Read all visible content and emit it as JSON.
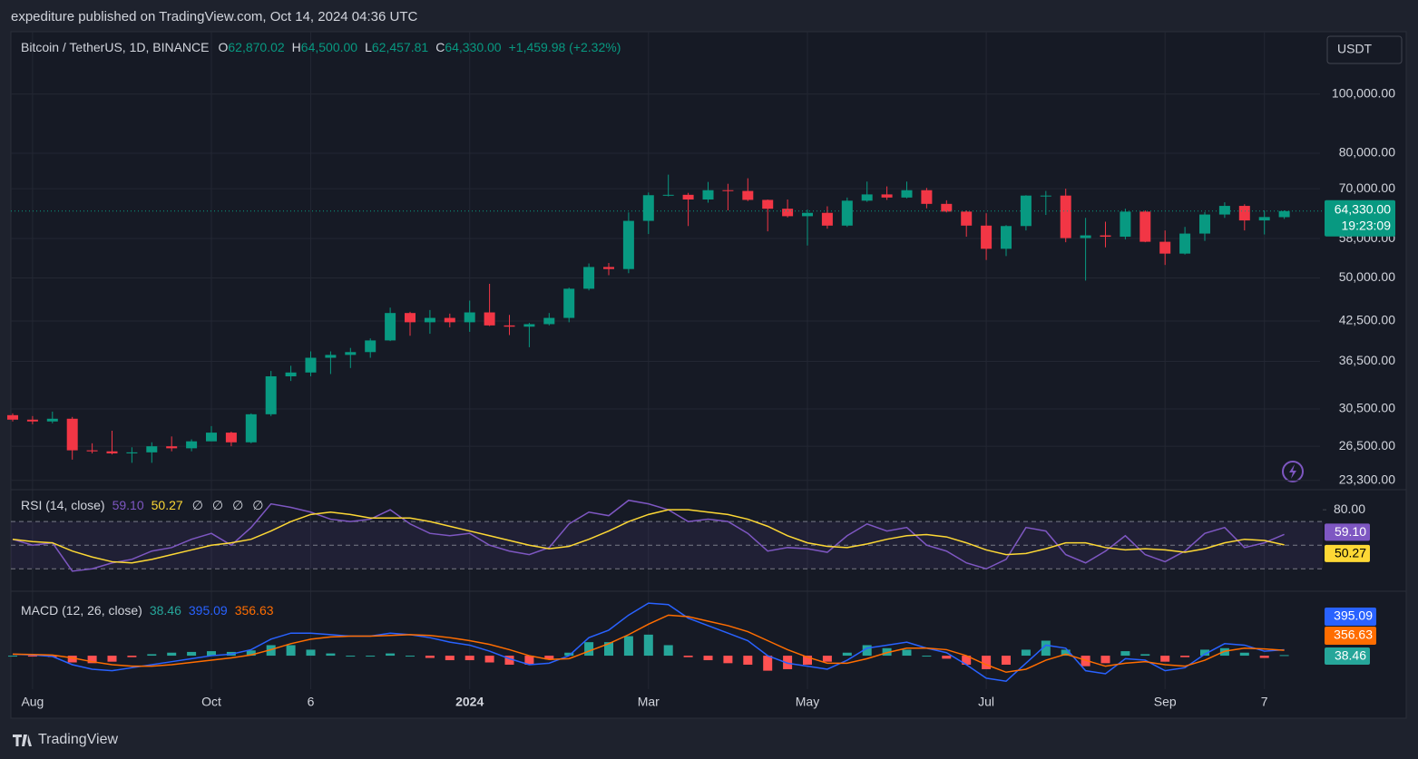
{
  "header": {
    "published": "expediture published on TradingView.com, Oct 14, 2024 04:36 UTC"
  },
  "footer": {
    "brand": "TradingView"
  },
  "chart_data": [
    {
      "type": "candlestick",
      "title": "Bitcoin / TetherUS, 1D, BINANCE",
      "ohlc_legend": [
        {
          "key": "O",
          "value": "62,870.02"
        },
        {
          "key": "H",
          "value": "64,500.00"
        },
        {
          "key": "L",
          "value": "62,457.81"
        },
        {
          "key": "C",
          "value": "64,330.00"
        }
      ],
      "change": "+1,459.98 (+2.32%)",
      "currency": "USDT",
      "categories": [
        null,
        "Aug",
        null,
        null,
        null,
        null,
        null,
        null,
        null,
        null,
        "Oct",
        null,
        null,
        null,
        null,
        "6",
        null,
        null,
        null,
        null,
        null,
        null,
        null,
        "2024",
        null,
        null,
        null,
        null,
        null,
        null,
        null,
        null,
        "Mar",
        null,
        null,
        null,
        null,
        null,
        null,
        null,
        "May",
        null,
        null,
        null,
        null,
        null,
        null,
        null,
        null,
        "Jul",
        null,
        null,
        null,
        null,
        null,
        null,
        null,
        null,
        "Sep",
        null,
        null,
        null,
        null,
        "7",
        null
      ],
      "open": [
        29800,
        29300,
        29100,
        29400,
        26100,
        26000,
        25800,
        25900,
        26500,
        26300,
        27000,
        27900,
        26900,
        29900,
        34500,
        35000,
        37000,
        37400,
        37800,
        39500,
        43800,
        42300,
        43000,
        42300,
        43900,
        41800,
        41600,
        42000,
        43000,
        48000,
        52100,
        51700,
        62000,
        68300,
        68400,
        67200,
        69600,
        69400,
        67100,
        64900,
        63100,
        63900,
        60900,
        66900,
        68500,
        67700,
        69600,
        66100,
        64200,
        60900,
        55800,
        60800,
        68200,
        68200,
        58100,
        58700,
        58400,
        64200,
        57300,
        54800,
        59100,
        63500,
        65600,
        62100,
        62870.02
      ],
      "high": [
        30000,
        29700,
        30200,
        29600,
        26800,
        28100,
        26400,
        26900,
        27500,
        27200,
        28600,
        28000,
        30000,
        35200,
        35900,
        37900,
        37900,
        38400,
        39800,
        44700,
        44000,
        44300,
        43700,
        45900,
        48900,
        43500,
        42200,
        43800,
        48200,
        52800,
        52900,
        64000,
        69000,
        73800,
        68900,
        71800,
        71300,
        72800,
        67200,
        67200,
        64700,
        65500,
        67700,
        71900,
        70600,
        71900,
        70200,
        67000,
        64500,
        63800,
        61000,
        68300,
        69400,
        70000,
        62700,
        61800,
        64900,
        64500,
        59800,
        60600,
        64100,
        66500,
        66000,
        64500,
        64500
      ],
      "low": [
        29100,
        28800,
        28900,
        25200,
        25800,
        25700,
        24900,
        24900,
        26000,
        26000,
        27000,
        26500,
        26800,
        29700,
        33900,
        34500,
        34800,
        35600,
        37000,
        39400,
        40200,
        40500,
        41500,
        40800,
        41700,
        40300,
        38500,
        41800,
        42300,
        47700,
        50500,
        50900,
        59000,
        68000,
        60800,
        66400,
        64500,
        66800,
        59600,
        62800,
        56500,
        60200,
        60600,
        66600,
        67100,
        67500,
        65000,
        64000,
        58400,
        53500,
        54300,
        59800,
        63400,
        57200,
        49500,
        56100,
        57800,
        57200,
        52500,
        54600,
        57500,
        62700,
        59800,
        58900,
        62457.81
      ],
      "close": [
        29300,
        29100,
        29400,
        26100,
        26000,
        25800,
        25900,
        26500,
        26300,
        27000,
        27900,
        26900,
        29900,
        34500,
        35000,
        37000,
        37400,
        37800,
        39500,
        43800,
        42300,
        43000,
        42300,
        43900,
        41800,
        41600,
        42000,
        43000,
        48000,
        52100,
        51700,
        62000,
        68300,
        68400,
        67200,
        69600,
        69400,
        67100,
        64900,
        63100,
        63900,
        60900,
        66900,
        68500,
        67700,
        69600,
        66100,
        64200,
        60900,
        55800,
        60800,
        68200,
        68200,
        58100,
        58700,
        58400,
        64200,
        57300,
        54800,
        59100,
        63500,
        65600,
        62100,
        62900,
        64330
      ],
      "up_color": "#089981",
      "down_color": "#f23645",
      "log_scale": true,
      "grid": true,
      "ylim": [
        22500,
        126500
      ],
      "yticks": [
        {
          "value": 23300,
          "label": "23,300.00"
        },
        {
          "value": 26500,
          "label": "26,500.00"
        },
        {
          "value": 30500,
          "label": "30,500.00"
        },
        {
          "value": 36500,
          "label": "36,500.00"
        },
        {
          "value": 42500,
          "label": "42,500.00"
        },
        {
          "value": 50000,
          "label": "50,000.00"
        },
        {
          "value": 58000,
          "label": "58,000.00"
        },
        {
          "value": 70000,
          "label": "70,000.00"
        },
        {
          "value": 80000,
          "label": "80,000.00"
        },
        {
          "value": 100000,
          "label": "100,000.00"
        }
      ],
      "last_price_label": "64,330.00",
      "countdown": "19:23:09"
    },
    {
      "type": "line",
      "title": "RSI (14, close)",
      "series": [
        {
          "color": "#7e57c2",
          "last_label": "59.10",
          "values": [
            55,
            50,
            52,
            28,
            30,
            35,
            38,
            45,
            48,
            55,
            60,
            50,
            65,
            85,
            82,
            78,
            72,
            70,
            72,
            80,
            68,
            60,
            58,
            60,
            50,
            45,
            42,
            48,
            68,
            78,
            75,
            88,
            85,
            80,
            70,
            72,
            70,
            60,
            45,
            48,
            47,
            44,
            58,
            68,
            62,
            65,
            50,
            45,
            35,
            30,
            38,
            65,
            62,
            42,
            35,
            45,
            58,
            42,
            36,
            45,
            60,
            65,
            48,
            52,
            59.1
          ]
        },
        {
          "color": "#fdd835",
          "last_label": "50.27",
          "values": [
            55,
            53,
            52,
            45,
            40,
            36,
            35,
            38,
            42,
            46,
            50,
            52,
            55,
            62,
            70,
            76,
            78,
            76,
            73,
            73,
            73,
            70,
            66,
            62,
            58,
            54,
            50,
            47,
            49,
            55,
            62,
            70,
            76,
            80,
            80,
            78,
            76,
            72,
            66,
            58,
            52,
            49,
            48,
            51,
            55,
            58,
            59,
            57,
            52,
            46,
            42,
            43,
            47,
            52,
            52,
            48,
            46,
            47,
            46,
            44,
            47,
            52,
            55,
            54,
            50.27
          ]
        }
      ],
      "na_labels": [
        "∅",
        "∅",
        "∅",
        "∅"
      ],
      "ylim": [
        11,
        97
      ],
      "yticks": [
        {
          "value": 80,
          "label": "80.00"
        }
      ],
      "bands": [
        70,
        50,
        30
      ]
    },
    {
      "type": "macd",
      "title": "MACD (12, 26, close)",
      "histogram": {
        "last_label": "38.46",
        "up_color": "#26a69a",
        "down_color": "#ff5252",
        "values": [
          0,
          -30,
          -90,
          -450,
          -500,
          -400,
          -100,
          100,
          200,
          250,
          300,
          250,
          350,
          700,
          700,
          400,
          150,
          0,
          0,
          150,
          0,
          -150,
          -300,
          -300,
          -450,
          -600,
          -600,
          -250,
          200,
          900,
          900,
          1300,
          1400,
          700,
          -100,
          -300,
          -500,
          -600,
          -1000,
          -900,
          -600,
          -400,
          200,
          700,
          500,
          400,
          0,
          -200,
          -600,
          -900,
          -600,
          400,
          1000,
          400,
          -700,
          -500,
          300,
          100,
          -400,
          -100,
          400,
          500,
          200,
          -150,
          38.46
        ]
      },
      "series": [
        {
          "color": "#2962ff",
          "last_label": "395.09",
          "values": [
            100,
            50,
            -50,
            -600,
            -900,
            -1000,
            -800,
            -600,
            -400,
            -200,
            0,
            100,
            400,
            1100,
            1500,
            1500,
            1400,
            1300,
            1300,
            1500,
            1400,
            1200,
            900,
            700,
            300,
            -200,
            -600,
            -500,
            0,
            1200,
            1700,
            2700,
            3500,
            3400,
            2500,
            2000,
            1500,
            1000,
            0,
            -500,
            -700,
            -900,
            -300,
            500,
            700,
            900,
            500,
            200,
            -600,
            -1500,
            -1700,
            -500,
            700,
            500,
            -1000,
            -1200,
            -200,
            -300,
            -1000,
            -800,
            100,
            800,
            700,
            300,
            395.09
          ]
        },
        {
          "color": "#ff6d00",
          "last_label": "356.63",
          "values": [
            100,
            80,
            40,
            -150,
            -400,
            -600,
            -700,
            -700,
            -600,
            -450,
            -300,
            -150,
            50,
            400,
            800,
            1100,
            1250,
            1300,
            1300,
            1350,
            1400,
            1350,
            1200,
            1000,
            750,
            400,
            0,
            -250,
            -200,
            300,
            800,
            1400,
            2100,
            2700,
            2600,
            2300,
            2000,
            1600,
            1000,
            400,
            -100,
            -500,
            -500,
            -200,
            200,
            500,
            500,
            400,
            0,
            -600,
            -1100,
            -900,
            -300,
            100,
            -300,
            -700,
            -500,
            -400,
            -600,
            -700,
            -300,
            300,
            500,
            450,
            356.63
          ]
        }
      ],
      "ylim": [
        -2230,
        4290
      ]
    }
  ]
}
